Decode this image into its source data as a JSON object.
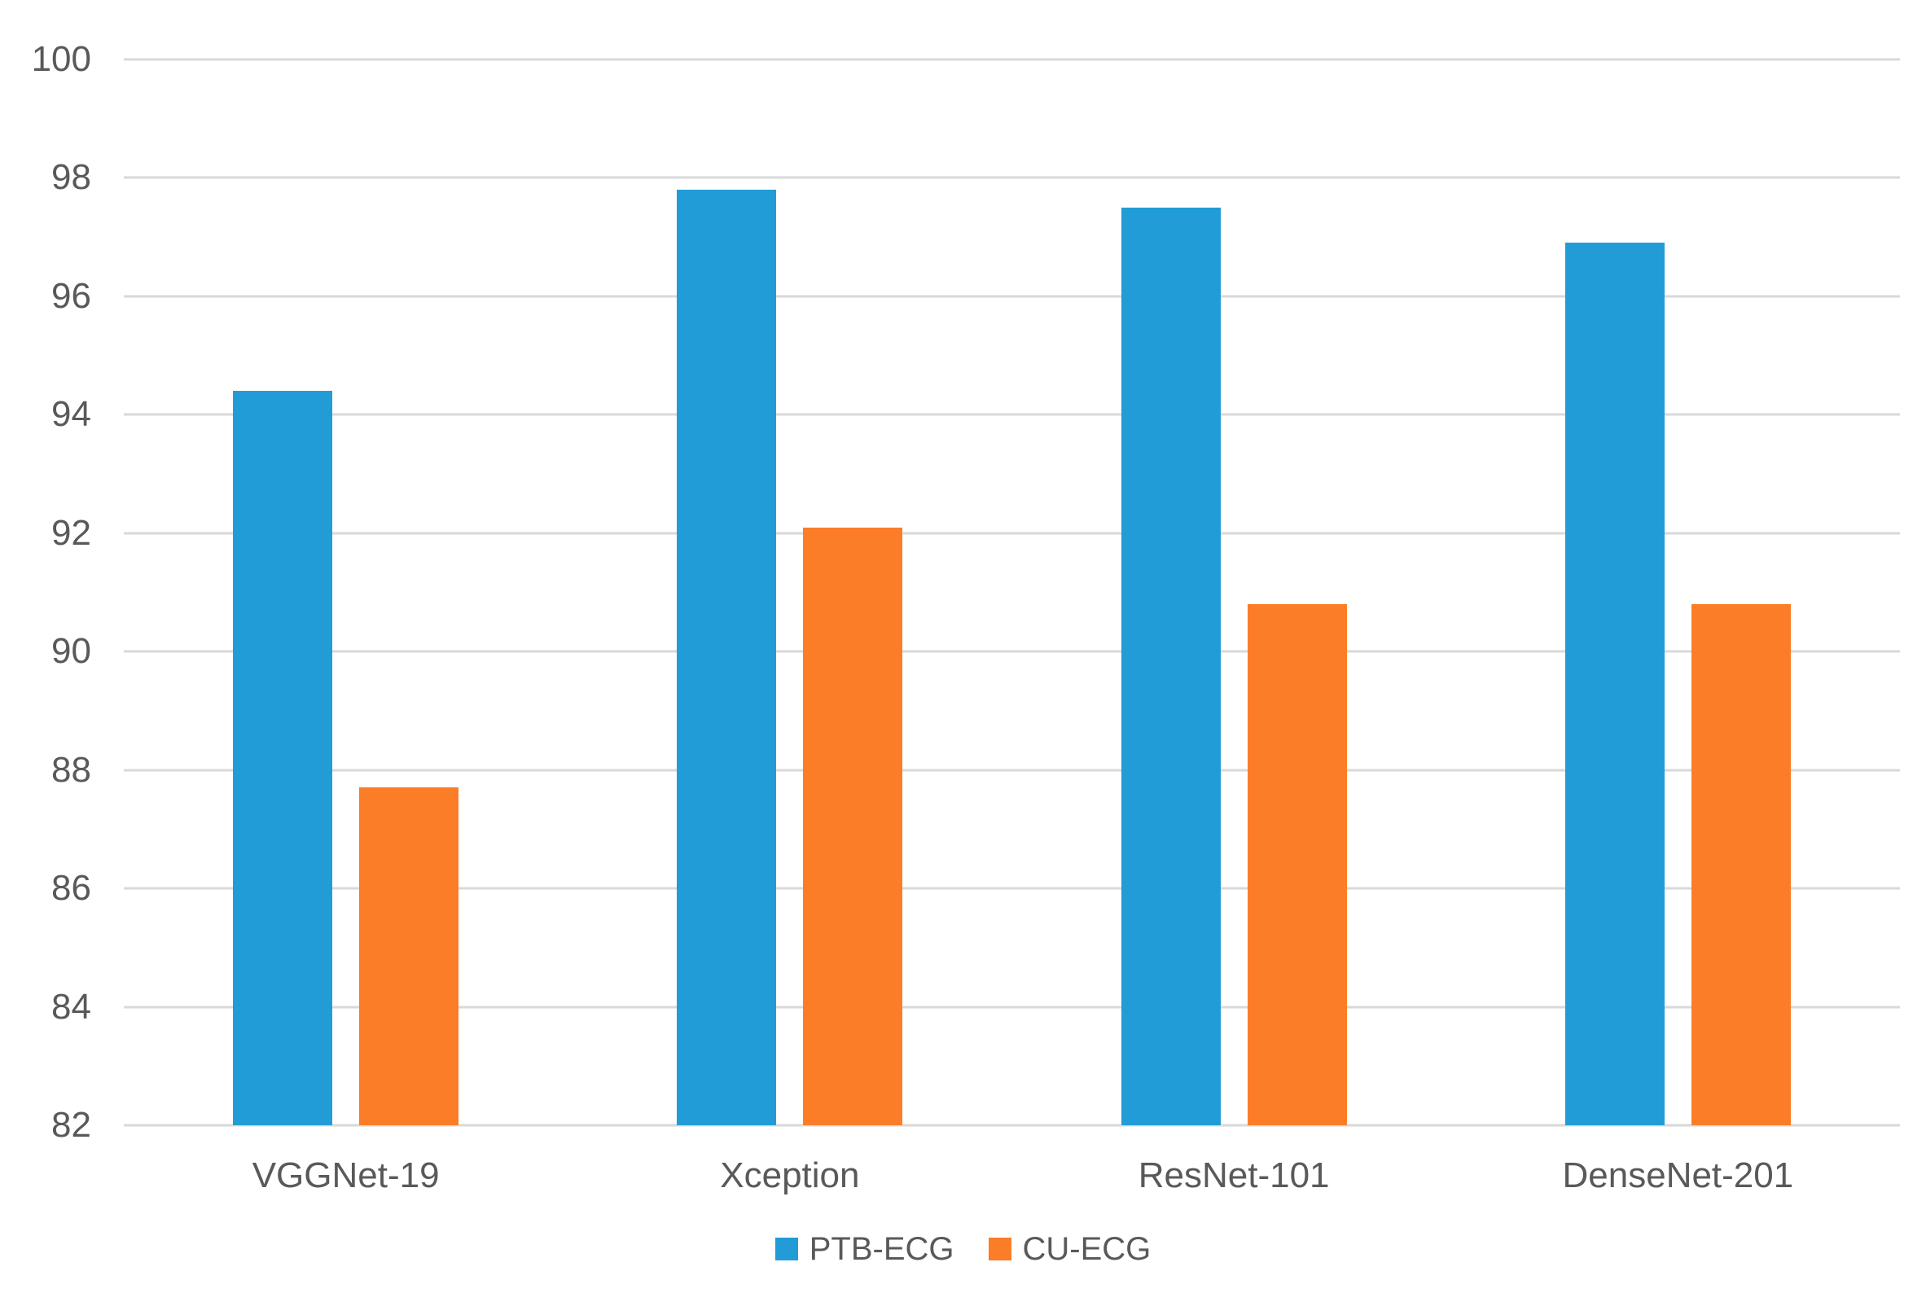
{
  "chart_data": {
    "type": "bar",
    "title": "",
    "xlabel": "",
    "ylabel": "",
    "categories": [
      "VGGNet-19",
      "Xception",
      "ResNet-101",
      "DenseNet-201"
    ],
    "series": [
      {
        "name": "PTB-ECG",
        "color": "#219CD7",
        "values": [
          94.4,
          97.8,
          97.5,
          96.9
        ]
      },
      {
        "name": "CU-ECG",
        "color": "#FB7D27",
        "values": [
          87.7,
          92.1,
          90.8,
          90.8
        ]
      }
    ],
    "y_axis": {
      "min": 82,
      "max": 100,
      "step": 2,
      "ticks": [
        100,
        98,
        96,
        94,
        92,
        90,
        88,
        86,
        84,
        82
      ]
    },
    "grid": true,
    "legend_position": "bottom"
  },
  "colors": {
    "background": "#FFFFFF",
    "gridline": "#D9D9D9",
    "axis_text": "#595959"
  }
}
